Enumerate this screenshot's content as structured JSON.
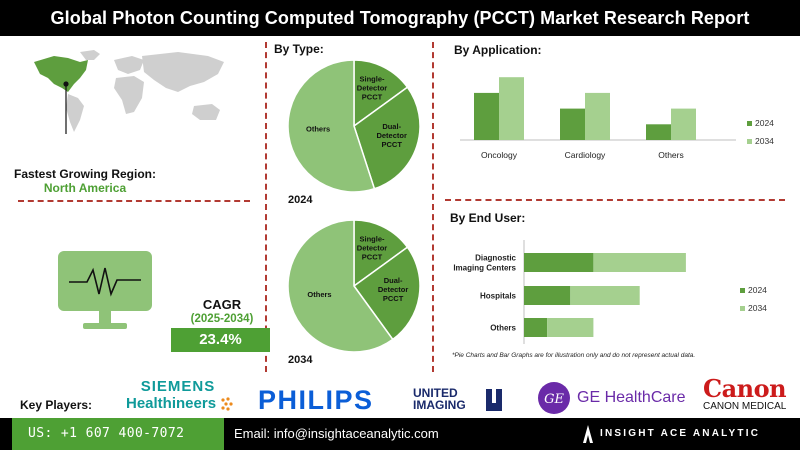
{
  "title": "Global Photon Counting Computed Tomography (PCCT) Market Research Report",
  "region": {
    "label": "Fastest Growing Region:",
    "value": "North America"
  },
  "cagr": {
    "label": "CAGR",
    "period": "(2025-2034)",
    "value": "23.4%"
  },
  "colors": {
    "dark_green": "#5e9e3e",
    "light_green": "#a5d08f",
    "medium_green": "#8fc378",
    "accent_green": "#4ea034",
    "divider_red": "#b23a32"
  },
  "sections": {
    "by_type": "By Type:",
    "by_application": "By  Application:",
    "by_end_user": "By End User:"
  },
  "footnote": "*Pie Charts and Bar Graphs are for illustration only and do not represent actual data.",
  "key_players": {
    "label": "Key Players:",
    "logos": {
      "siemens_line1": "SIEMENS",
      "siemens_line2": "Healthineers",
      "philips": "PHILIPS",
      "united_line1": "UNITED",
      "united_line2": "IMAGING",
      "ge": "GE HealthCare",
      "ge_mark": "GE",
      "canon": "Canon",
      "canon_medical": "CANON MEDICAL"
    }
  },
  "footer": {
    "phone": "US: +1 607 400-7072",
    "email": "Email: info@insightaceanalytic.com",
    "brand": "INSIGHT ACE ANALYTIC"
  },
  "chart_data": [
    {
      "type": "pie",
      "title": "By Type:",
      "year": "2024",
      "slices": [
        {
          "label": "Others",
          "value": 55,
          "color": "#8fc378"
        },
        {
          "label": "Dual-Detector PCCT",
          "value": 30,
          "color": "#5e9e3e"
        },
        {
          "label": "Single-Detector PCCT",
          "value": 15,
          "color": "#5e9e3e"
        }
      ]
    },
    {
      "type": "pie",
      "title": "By Type:",
      "year": "2034",
      "slices": [
        {
          "label": "Others",
          "value": 60,
          "color": "#8fc378"
        },
        {
          "label": "Dual-Detector PCCT",
          "value": 25,
          "color": "#5e9e3e"
        },
        {
          "label": "Single-Detector PCCT",
          "value": 15,
          "color": "#5e9e3e"
        }
      ]
    },
    {
      "type": "bar",
      "title": "By  Application:",
      "categories": [
        "Oncology",
        "Cardiology",
        "Others"
      ],
      "series": [
        {
          "name": "2024",
          "values": [
            45,
            30,
            15
          ],
          "color": "#5e9e3e"
        },
        {
          "name": "2034",
          "values": [
            60,
            45,
            30
          ],
          "color": "#a5d08f"
        }
      ],
      "legend": "right",
      "grid": false
    },
    {
      "type": "bar",
      "orientation": "horizontal",
      "stacked": true,
      "title": "By End User:",
      "categories": [
        "Diagnostic Imaging Centers",
        "Hospitals",
        "Others"
      ],
      "category_lines": [
        [
          "Diagnostic",
          "Imaging Centers"
        ],
        [
          "Hospitals"
        ],
        [
          "Others"
        ]
      ],
      "series": [
        {
          "name": "2024",
          "values": [
            30,
            20,
            10
          ],
          "color": "#5e9e3e"
        },
        {
          "name": "2034",
          "values": [
            40,
            30,
            20
          ],
          "color": "#a5d08f"
        }
      ],
      "legend": "right",
      "grid": false
    }
  ]
}
